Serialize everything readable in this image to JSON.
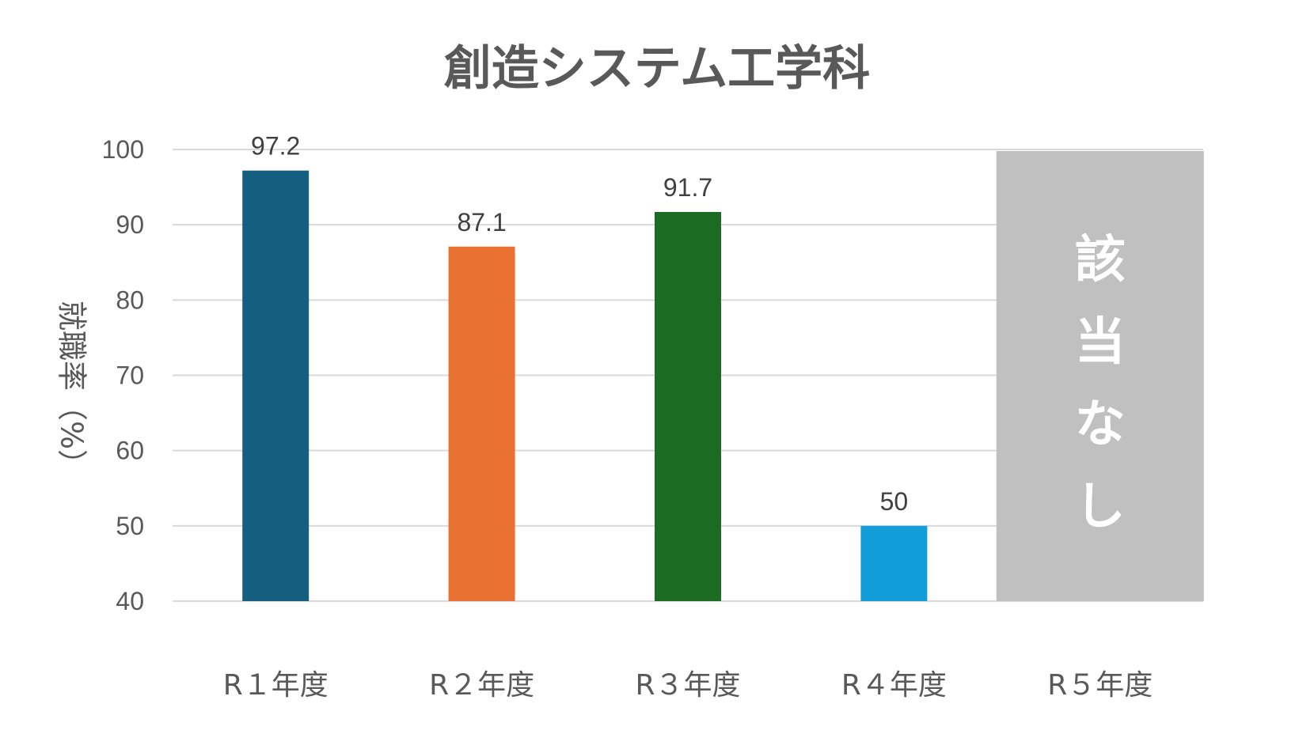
{
  "chart_data": {
    "type": "bar",
    "title": "創造システム工学科",
    "ylabel": "就職率（%）",
    "xlabel": "",
    "ylim": [
      40,
      100
    ],
    "yticks": [
      40,
      50,
      60,
      70,
      80,
      90,
      100
    ],
    "categories": [
      "R１年度",
      "R２年度",
      "R３年度",
      "R４年度",
      "R５年度"
    ],
    "values": [
      97.2,
      87.1,
      91.7,
      50,
      null
    ],
    "data_labels": [
      "97.2",
      "87.1",
      "91.7",
      "50",
      ""
    ],
    "colors": [
      "#165e80",
      "#e87132",
      "#1b6b25",
      "#129dd8",
      "#c0c0c0"
    ],
    "grid": true,
    "annotations": [
      {
        "category": "R５年度",
        "text": "該当なし",
        "style": "full-height grey box, vertical white text"
      }
    ]
  }
}
